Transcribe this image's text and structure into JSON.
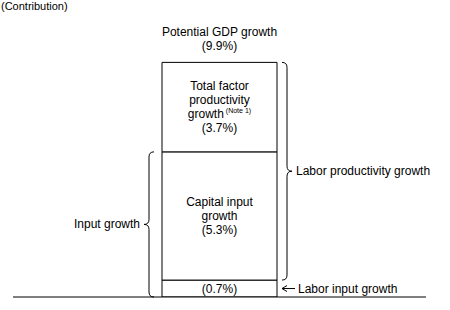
{
  "chart_data": {
    "type": "bar",
    "stacked": true,
    "title": "Potential GDP growth",
    "total": 9.9,
    "total_label": "(9.9%)",
    "y_label": "(Contribution)",
    "categories": [
      null
    ],
    "ylim": [
      0,
      11.7
    ],
    "tick_labels": false,
    "series": [
      {
        "name": "Labor input growth",
        "color": "#ffffff",
        "values": [
          0.7
        ],
        "value_labels": [
          "(0.7%)"
        ]
      },
      {
        "name": "Capital input growth",
        "color": "#ffffff",
        "values": [
          5.3
        ],
        "value_labels": [
          "(5.3%)"
        ]
      },
      {
        "name": "Total factor productivity growth",
        "name_note": "(Note 1)",
        "color": "#ffffff",
        "values": [
          3.7
        ],
        "value_labels": [
          "(3.7%)"
        ]
      }
    ],
    "annotations": [
      {
        "text": "Input growth",
        "spans": [
          "Labor input growth",
          "Capital input growth"
        ]
      },
      {
        "text": "Labor productivity growth",
        "spans": [
          "Capital input growth",
          "Total factor productivity growth"
        ]
      }
    ]
  }
}
